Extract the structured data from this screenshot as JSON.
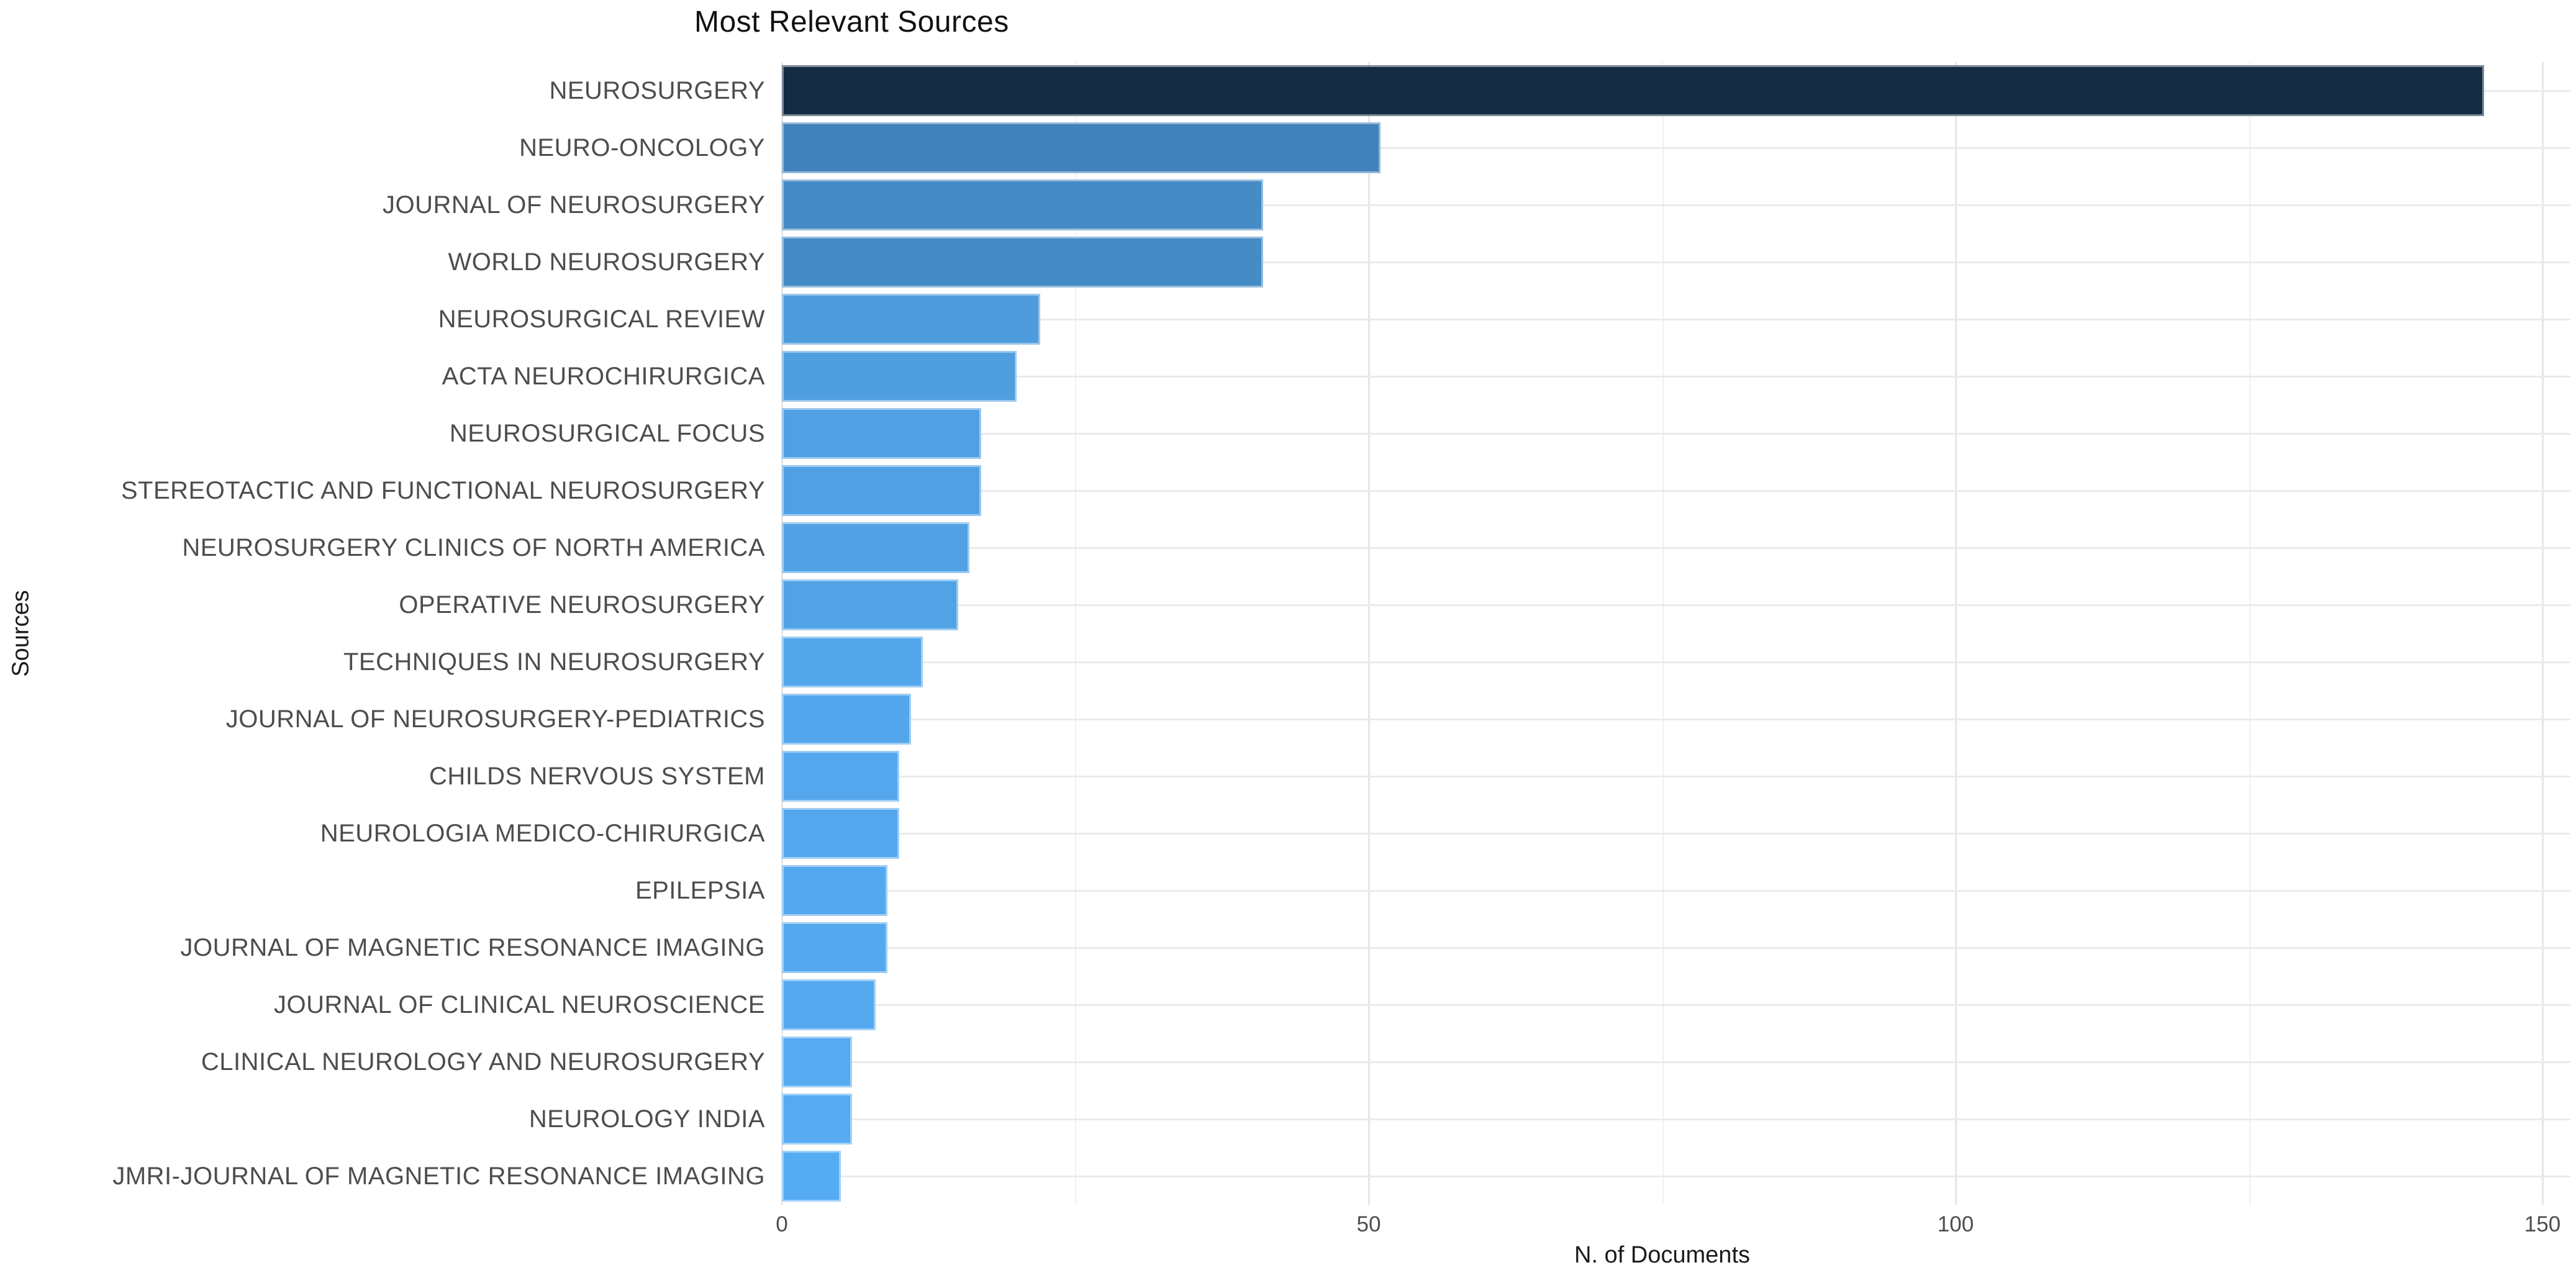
{
  "chart_data": {
    "type": "bar",
    "orientation": "horizontal",
    "title": "Most Relevant Sources",
    "xlabel": "N. of Documents",
    "ylabel": "Sources",
    "categories": [
      "NEUROSURGERY",
      "NEURO-ONCOLOGY",
      "JOURNAL OF NEUROSURGERY",
      "WORLD NEUROSURGERY",
      "NEUROSURGICAL REVIEW",
      "ACTA NEUROCHIRURGICA",
      "NEUROSURGICAL FOCUS",
      "STEREOTACTIC AND FUNCTIONAL NEUROSURGERY",
      "NEUROSURGERY CLINICS OF NORTH AMERICA",
      "OPERATIVE NEUROSURGERY",
      "TECHNIQUES IN NEUROSURGERY",
      "JOURNAL OF NEUROSURGERY-PEDIATRICS",
      "CHILDS NERVOUS SYSTEM",
      "NEUROLOGIA MEDICO-CHIRURGICA",
      "EPILEPSIA",
      "JOURNAL OF MAGNETIC RESONANCE IMAGING",
      "JOURNAL OF CLINICAL NEUROSCIENCE",
      "CLINICAL NEUROLOGY AND NEUROSURGERY",
      "NEUROLOGY INDIA",
      "JMRI-JOURNAL OF MAGNETIC RESONANCE IMAGING"
    ],
    "values": [
      145,
      51,
      41,
      41,
      22,
      20,
      17,
      17,
      16,
      15,
      12,
      11,
      10,
      10,
      9,
      9,
      8,
      6,
      6,
      5
    ],
    "xlim": [
      0,
      150
    ],
    "x_major_ticks": [
      0,
      50,
      100,
      150
    ],
    "x_minor_ticks": [
      25,
      75,
      125
    ],
    "grid": true,
    "legend": false,
    "colors": {
      "fill_low_value": "#56ACF2",
      "fill_high_value": "#132B43",
      "grid_major": "#E6E6E6",
      "grid_minor": "#F1F1F1",
      "grid_horizontal": "#EBEBEB",
      "axis_text": "#4D4D4D",
      "title_text": "#111111",
      "background": "#FFFFFF"
    }
  }
}
